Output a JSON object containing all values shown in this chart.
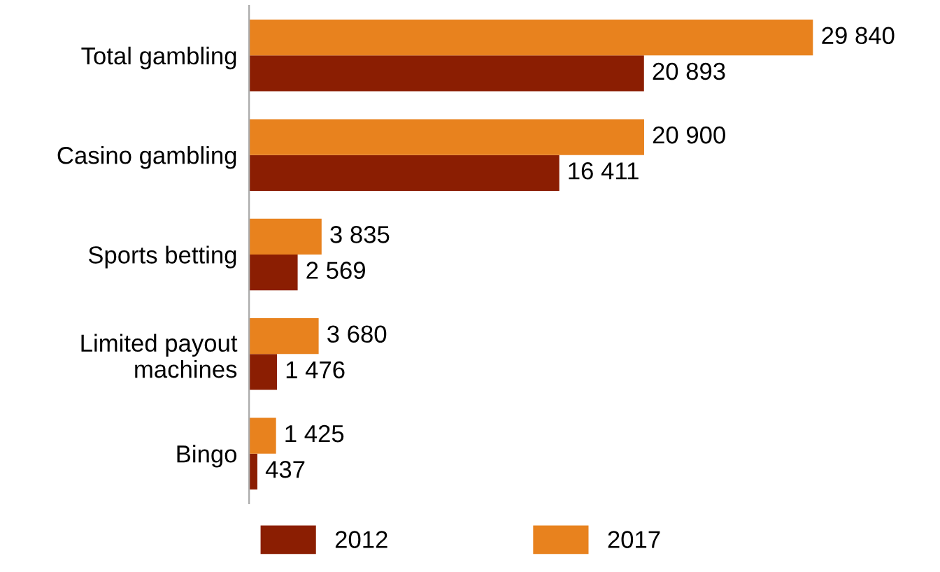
{
  "chart_data": {
    "type": "bar",
    "orientation": "horizontal",
    "categories": [
      "Total gambling",
      "Casino gambling",
      "Sports betting",
      "Limited payout\nmachines",
      "Bingo"
    ],
    "series": [
      {
        "name": "2012",
        "color": "#8b1e02",
        "values": [
          20893,
          16411,
          2569,
          1476,
          437
        ],
        "value_labels": [
          "20 893",
          "16 411",
          "2 569",
          "1 476",
          "437"
        ]
      },
      {
        "name": "2017",
        "color": "#e8821e",
        "values": [
          29840,
          20900,
          3835,
          3680,
          1425
        ],
        "value_labels": [
          "29 840",
          "20 900",
          "3 835",
          "3 680",
          "1 425"
        ]
      }
    ],
    "legend": "bottom",
    "grid": false
  }
}
